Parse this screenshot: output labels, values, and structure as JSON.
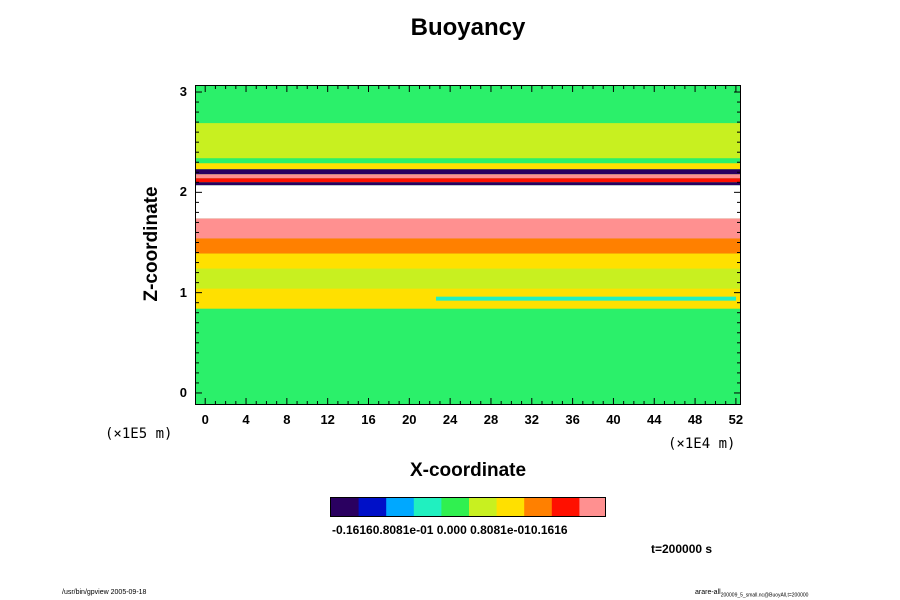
{
  "chart_data": {
    "type": "heatmap",
    "title": "Buoyancy",
    "xlabel": "X-coordinate",
    "ylabel": "Z-coordinate",
    "x_ticks": [
      "0",
      "4",
      "8",
      "12",
      "16",
      "20",
      "24",
      "28",
      "32",
      "36",
      "40",
      "44",
      "48",
      "52"
    ],
    "y_ticks": [
      "0",
      "1",
      "2",
      "3"
    ],
    "xlim": [
      -1,
      52.5
    ],
    "ylim": [
      -0.12,
      3.07
    ],
    "x_unit": "(×1E4 m)",
    "z_unit": "(×1E5 m)",
    "colorbar": {
      "tick_labels": "-0.16160.8081e-01 0.000 0.8081e-010.1616",
      "range": [
        -0.1616,
        0.1616
      ],
      "colormap": [
        "#2a0060",
        "#0010c8",
        "#00a8ff",
        "#20f0c0",
        "#30f050",
        "#c8f020",
        "#ffe000",
        "#ff8000",
        "#ff1000",
        "#ff9090"
      ]
    },
    "bands": [
      {
        "z_range": [
          1.75,
          2.08
        ],
        "value": null,
        "description": "white (no data)"
      },
      {
        "z_range": [
          1.4,
          1.75
        ],
        "value": 0.12
      },
      {
        "z_range": [
          2.08,
          2.3
        ],
        "value": "alternating -0.16 / 0.16"
      },
      {
        "z_range": [
          0.85,
          1.4
        ],
        "value": 0.04
      },
      {
        "z_range": [
          -0.12,
          0.85
        ],
        "value": 0.0
      },
      {
        "z_range": [
          2.3,
          3.07
        ],
        "value": 0.0
      }
    ],
    "time": "t=200000 s"
  },
  "footer": {
    "left": "/usr/bin/gpview 2005-09-18",
    "right": "arare-all",
    "right_sub": "200009_5_small.nc@BuoyAll,t=200000"
  },
  "colors": {
    "background_field": "#2bf06a",
    "missing": "#ffffff"
  }
}
